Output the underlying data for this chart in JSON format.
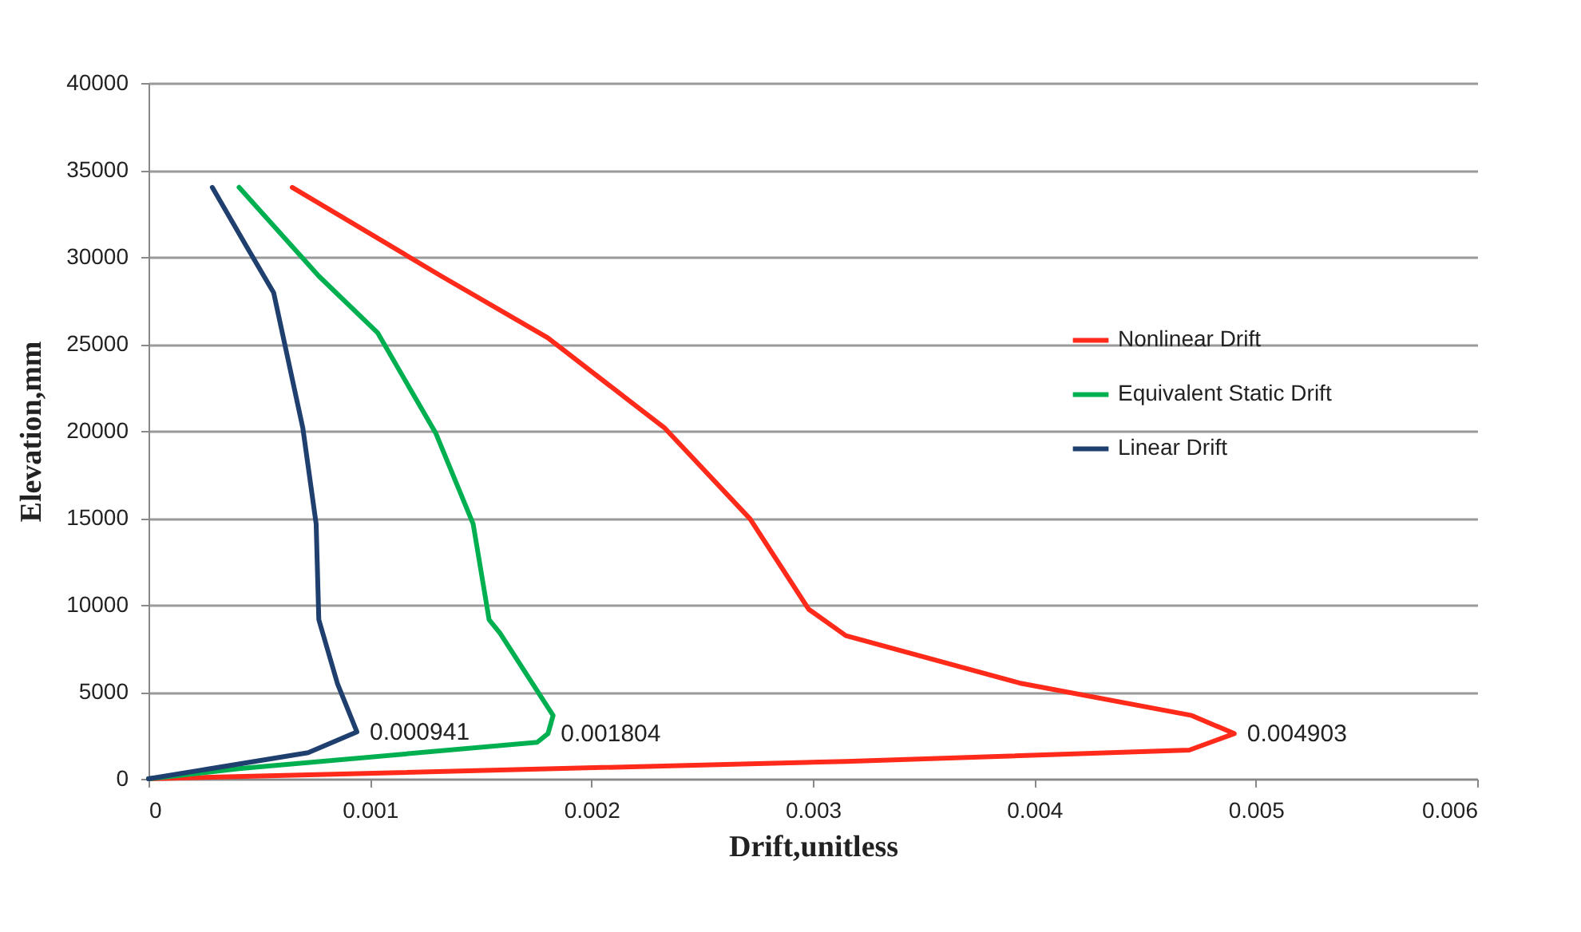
{
  "chart_data": {
    "type": "line",
    "xlabel": "Drift,unitless",
    "ylabel": "Elevation,mm",
    "xlim": [
      0,
      0.006
    ],
    "xticks": [
      0,
      0.001,
      0.002,
      0.003,
      0.004,
      0.005,
      0.006
    ],
    "ylim": [
      0,
      40000
    ],
    "yticks": [
      0,
      5000,
      10000,
      15000,
      20000,
      25000,
      30000,
      35000,
      40000
    ],
    "grid": "y",
    "legend": "right",
    "series": [
      {
        "name": "Nonlinear Drift",
        "color": "#ff2a1a",
        "x": [
          0,
          0.00315,
          0.0047,
          0.004903,
          0.004711,
          0.003942,
          0.003149,
          0.002981,
          0.002716,
          0.002332,
          0.001803,
          0.001322,
          0.000649
        ],
        "values": [
          0,
          1000,
          1650,
          2600,
          3640,
          5480,
          8230,
          9750,
          14950,
          20150,
          25350,
          28900,
          34000
        ]
      },
      {
        "name": "Equivalent Static Drift",
        "color": "#00b050",
        "x": [
          0,
          0.000409,
          0.001755,
          0.001804,
          0.001827,
          0.001587,
          0.001538,
          0.001466,
          0.001298,
          0.001034,
          0.000769,
          0.000409
        ],
        "values": [
          0,
          580,
          2100,
          2600,
          3640,
          8380,
          9150,
          14650,
          19850,
          25650,
          28900,
          34000
        ]
      },
      {
        "name": "Linear Drift",
        "color": "#1f3f6e",
        "x": [
          0,
          0.000721,
          0.000941,
          0.000853,
          0.000769,
          0.000757,
          0.000697,
          0.000565,
          0.000445,
          0.000288
        ],
        "values": [
          0,
          1500,
          2700,
          5480,
          9150,
          14650,
          20150,
          27950,
          30550,
          34000
        ]
      }
    ],
    "annotations": [
      {
        "text": "0.000941",
        "x": 0.000941,
        "y": 2700
      },
      {
        "text": "0.001804",
        "x": 0.001804,
        "y": 2600
      },
      {
        "text": "0.004903",
        "x": 0.004903,
        "y": 2600
      }
    ]
  }
}
